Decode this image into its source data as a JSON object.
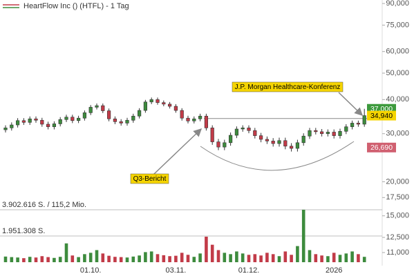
{
  "chart_data": {
    "type": "candlestick",
    "title": "HeartFlow Inc () (HTFL) - 1 Tag",
    "categories": [
      null,
      null,
      null,
      null,
      null,
      null,
      null,
      null,
      null,
      null,
      null,
      null,
      null,
      null,
      "01.10.",
      null,
      null,
      null,
      null,
      null,
      null,
      null,
      null,
      null,
      null,
      null,
      null,
      null,
      "03.11.",
      null,
      null,
      null,
      null,
      null,
      null,
      null,
      null,
      null,
      null,
      null,
      "01.12.",
      null,
      null,
      null,
      null,
      null,
      null,
      null,
      null,
      null,
      null,
      null,
      null,
      null,
      "2026",
      null,
      null,
      null,
      null,
      null
    ],
    "candles": {
      "open": [
        31.0,
        31.5,
        32.3,
        33.5,
        33.0,
        34.0,
        33.6,
        32.5,
        31.8,
        32.6,
        33.8,
        34.5,
        33.5,
        34.2,
        35.8,
        37.5,
        38.0,
        36.4,
        34.0,
        33.2,
        32.8,
        33.6,
        34.8,
        36.5,
        39.2,
        40.0,
        39.0,
        38.5,
        37.8,
        36.5,
        34.2,
        33.4,
        34.0,
        34.8,
        31.5,
        28.0,
        26.8,
        27.8,
        29.6,
        31.2,
        31.5,
        30.8,
        29.5,
        28.6,
        28.2,
        27.6,
        28.3,
        27.0,
        26.5,
        27.8,
        29.4,
        30.8,
        30.5,
        30.0,
        30.4,
        29.5,
        30.6,
        31.8,
        32.8,
        32.5
      ],
      "high": [
        32.2,
        33.0,
        34.2,
        34.2,
        34.7,
        34.7,
        34.3,
        33.2,
        33.3,
        34.5,
        35.2,
        35.2,
        34.9,
        36.5,
        38.2,
        38.7,
        38.7,
        37.1,
        34.7,
        33.9,
        34.3,
        35.5,
        37.2,
        39.9,
        40.7,
        40.7,
        39.7,
        39.2,
        38.5,
        37.2,
        34.9,
        34.7,
        35.5,
        35.5,
        32.2,
        28.7,
        28.5,
        30.3,
        31.9,
        32.2,
        32.2,
        31.5,
        30.2,
        29.3,
        28.9,
        29.0,
        29.0,
        27.7,
        28.5,
        30.1,
        31.5,
        31.5,
        31.2,
        31.1,
        31.1,
        31.3,
        32.5,
        33.5,
        33.5,
        37.0
      ],
      "low": [
        30.3,
        30.8,
        31.6,
        32.3,
        32.3,
        32.9,
        31.8,
        31.1,
        31.1,
        31.9,
        33.1,
        32.8,
        32.8,
        33.5,
        35.1,
        36.8,
        35.7,
        33.3,
        32.5,
        32.1,
        32.1,
        32.9,
        34.1,
        35.8,
        38.5,
        38.3,
        37.8,
        37.1,
        35.8,
        33.5,
        32.7,
        32.7,
        33.3,
        30.8,
        27.3,
        26.1,
        26.1,
        27.1,
        28.9,
        30.5,
        30.1,
        28.8,
        27.9,
        27.5,
        26.9,
        26.9,
        26.3,
        25.8,
        25.8,
        27.1,
        28.7,
        29.8,
        29.3,
        29.3,
        28.8,
        28.8,
        29.9,
        31.1,
        31.8,
        31.8
      ],
      "close": [
        31.5,
        32.3,
        33.5,
        33.0,
        34.0,
        33.6,
        32.5,
        31.8,
        32.6,
        33.8,
        34.5,
        33.5,
        34.2,
        35.8,
        37.5,
        38.0,
        36.4,
        34.0,
        33.2,
        32.8,
        33.6,
        34.8,
        36.5,
        39.2,
        40.0,
        39.0,
        38.5,
        37.8,
        36.5,
        34.2,
        33.4,
        34.0,
        34.8,
        31.5,
        28.0,
        26.8,
        27.8,
        29.6,
        31.2,
        31.5,
        30.8,
        29.5,
        28.6,
        28.2,
        27.6,
        28.3,
        27.0,
        26.5,
        27.8,
        29.4,
        30.8,
        30.5,
        30.0,
        30.4,
        29.5,
        30.6,
        31.8,
        32.8,
        32.5,
        34.94
      ]
    },
    "volume": [
      420000,
      380000,
      350000,
      300000,
      400000,
      350000,
      450000,
      380000,
      320000,
      400000,
      1400000,
      500000,
      380000,
      600000,
      700000,
      900000,
      650000,
      480000,
      400000,
      380000,
      350000,
      420000,
      500000,
      750000,
      800000,
      600000,
      520000,
      450000,
      480000,
      700000,
      550000,
      400000,
      650000,
      1900000,
      1300000,
      900000,
      700000,
      600000,
      800000,
      650000,
      550000,
      600000,
      500000,
      700000,
      600000,
      450000,
      800000,
      550000,
      1200000,
      3902616,
      900000,
      600000,
      500000,
      450000,
      700000,
      550000,
      650000,
      800000,
      600000,
      400000
    ],
    "up_color": "#3d8b3d",
    "down_color": "#c23b48",
    "log_scale": true,
    "ylim": [
      10.14,
      92.7
    ],
    "yticks": [
      {
        "value": 90,
        "label": "90,000"
      },
      {
        "value": 75,
        "label": "75,000"
      },
      {
        "value": 60,
        "label": "60,000"
      },
      {
        "value": 50,
        "label": "50,000"
      },
      {
        "value": 40,
        "label": "40,000"
      },
      {
        "value": 30,
        "label": "30,000"
      },
      {
        "value": 20,
        "label": "20,000"
      },
      {
        "value": 17.5,
        "label": "17,500"
      },
      {
        "value": 15,
        "label": "15,000"
      },
      {
        "value": 12.5,
        "label": "12,500"
      },
      {
        "value": 11,
        "label": "11,000"
      }
    ],
    "volume_lim": [
      0,
      3902616
    ],
    "volume_ticks": [
      {
        "value": 3902616,
        "label": "3.902.616 S. / 115,2 Mio."
      },
      {
        "value": 1951308,
        "label": "1.951.308 S."
      }
    ],
    "price_markers": [
      {
        "value": 37.0,
        "label": "37,000",
        "color": "#3d9a3d"
      },
      {
        "value": 34.94,
        "label": "34,940",
        "color": "#f5d400"
      },
      {
        "value": 26.69,
        "label": "26,690",
        "color": "#d06070"
      }
    ],
    "level_line": 34.1,
    "annotations": [
      "J.P. Morgan Healthcare-Konferenz",
      "Q3-Bericht"
    ],
    "grid": false
  }
}
